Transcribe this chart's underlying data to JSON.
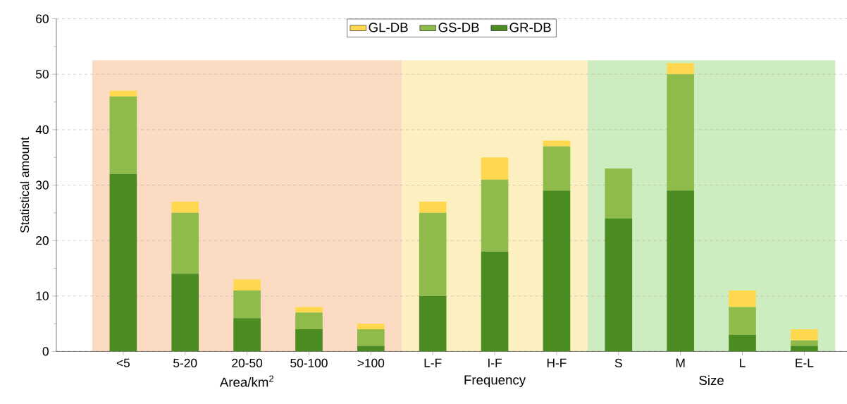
{
  "chart_data": {
    "type": "bar",
    "stacked": true,
    "ylabel": "Statistical amount",
    "categories": [
      "<5",
      "5-20",
      "20-50",
      "50-100",
      ">100",
      "L-F",
      "I-F",
      "H-F",
      "S",
      "M",
      "L",
      "E-L"
    ],
    "series": [
      {
        "name": "GR-DB",
        "color": "#4a8c22",
        "values": [
          32,
          14,
          6,
          4,
          1,
          10,
          18,
          29,
          24,
          29,
          3,
          1
        ]
      },
      {
        "name": "GS-DB",
        "color": "#8fbb4a",
        "values": [
          14,
          11,
          5,
          3,
          3,
          15,
          13,
          8,
          9,
          21,
          5,
          1
        ]
      },
      {
        "name": "GL-DB",
        "color": "#ffd84f",
        "values": [
          1,
          2,
          2,
          1,
          1,
          2,
          4,
          1,
          0,
          2,
          3,
          2
        ]
      }
    ],
    "ylim": [
      0,
      60
    ],
    "yticks": [
      0,
      10,
      20,
      30,
      40,
      50,
      60
    ],
    "grid": "y",
    "legend": "top",
    "bands": [
      {
        "axis": "x",
        "from": "<5",
        "to": ">100",
        "label": "Area/km$^{2}$",
        "color": "#fbdcc3"
      },
      {
        "axis": "x",
        "from": "L-F",
        "to": "H-F",
        "label": "Frequency",
        "color": "#fdf0c0"
      },
      {
        "axis": "x",
        "from": "S",
        "to": "E-L",
        "label": "Size",
        "color": "#cdecc0"
      }
    ]
  }
}
